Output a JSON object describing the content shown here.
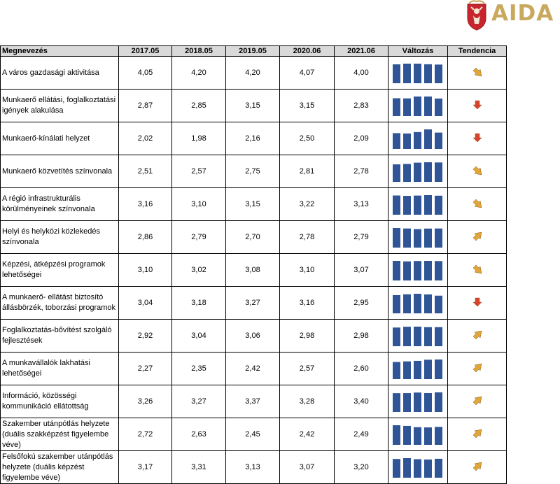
{
  "logo": {
    "text": "AIDA"
  },
  "table": {
    "headers": [
      "Megnevezés",
      "2017.05",
      "2018.05",
      "2019.05",
      "2020.06",
      "2021.06",
      "Változás",
      "Tendencia"
    ],
    "rows": [
      {
        "name": "A város gazdasági aktivitása",
        "values": [
          "4,05",
          "4,20",
          "4,20",
          "4,07",
          "4,00"
        ],
        "trend": "down-right",
        "spark": [
          4.05,
          4.2,
          4.2,
          4.07,
          4.0
        ]
      },
      {
        "name": "Munkaerő ellátási, foglalkoztatási igények alakulása",
        "values": [
          "2,87",
          "2,85",
          "3,15",
          "3,15",
          "2,83"
        ],
        "trend": "down",
        "spark": [
          2.87,
          2.85,
          3.15,
          3.15,
          2.83
        ]
      },
      {
        "name": "Munkaerő-kínálati helyzet",
        "values": [
          "2,02",
          "1,98",
          "2,16",
          "2,50",
          "2,09"
        ],
        "trend": "down",
        "spark": [
          2.02,
          1.98,
          2.16,
          2.5,
          2.09
        ]
      },
      {
        "name": "Munkaerő közvetítés színvonala",
        "values": [
          "2,51",
          "2,57",
          "2,75",
          "2,81",
          "2,78"
        ],
        "trend": "down-right",
        "spark": [
          2.51,
          2.57,
          2.75,
          2.81,
          2.78
        ]
      },
      {
        "name": "A régió infrastrukturális körülményeinek színvonala",
        "values": [
          "3,16",
          "3,10",
          "3,15",
          "3,22",
          "3,13"
        ],
        "trend": "down-right",
        "spark": [
          3.16,
          3.1,
          3.15,
          3.22,
          3.13
        ]
      },
      {
        "name": "Helyi és helyközi közlekedés színvonala",
        "values": [
          "2,86",
          "2,79",
          "2,70",
          "2,78",
          "2,79"
        ],
        "trend": "up-right",
        "spark": [
          2.86,
          2.79,
          2.7,
          2.78,
          2.79
        ]
      },
      {
        "name": "Képzési, átképzési programok lehetőségei",
        "values": [
          "3,10",
          "3,02",
          "3,08",
          "3,10",
          "3,07"
        ],
        "trend": "down-right",
        "spark": [
          3.1,
          3.02,
          3.08,
          3.1,
          3.07
        ]
      },
      {
        "name": "A munkaerő- ellátást biztosító állásbörzék, toborzási programok",
        "values": [
          "3,04",
          "3,18",
          "3,27",
          "3,16",
          "2,95"
        ],
        "trend": "down",
        "spark": [
          3.04,
          3.18,
          3.27,
          3.16,
          2.95
        ]
      },
      {
        "name": "Foglalkoztatás-bővítést szolgáló fejlesztések",
        "values": [
          "2,92",
          "3,04",
          "3,06",
          "2,98",
          "2,98"
        ],
        "trend": "up-right",
        "spark": [
          2.92,
          3.04,
          3.06,
          2.98,
          2.98
        ]
      },
      {
        "name": "A munkavállalók lakhatási lehetőségei",
        "values": [
          "2,27",
          "2,35",
          "2,42",
          "2,57",
          "2,60"
        ],
        "trend": "up-right",
        "spark": [
          2.27,
          2.35,
          2.42,
          2.57,
          2.6
        ]
      },
      {
        "name": "Információ, közösségi kommunikáció ellátottság",
        "values": [
          "3,26",
          "3,27",
          "3,37",
          "3,28",
          "3,40"
        ],
        "trend": "up-right",
        "spark": [
          3.26,
          3.27,
          3.37,
          3.28,
          3.4
        ]
      },
      {
        "name": "Szakember utánpótlás helyzete (duális szakképzést figyelembe véve)",
        "values": [
          "2,72",
          "2,63",
          "2,45",
          "2,42",
          "2,49"
        ],
        "trend": "up-right",
        "spark": [
          2.72,
          2.63,
          2.45,
          2.42,
          2.49
        ]
      },
      {
        "name": "Felsőfokú szakember utánpótlás helyzete (duális képzést figyelembe véve)",
        "values": [
          "3,17",
          "3,31",
          "3,13",
          "3,07",
          "3,20"
        ],
        "trend": "up-right",
        "spark": [
          3.17,
          3.31,
          3.13,
          3.07,
          3.2
        ]
      }
    ]
  },
  "colors": {
    "bar": "#2f5597",
    "arrow_up": "#e0a63a",
    "arrow_down": "#d9432e",
    "header_bg": "#d9d9d9"
  }
}
